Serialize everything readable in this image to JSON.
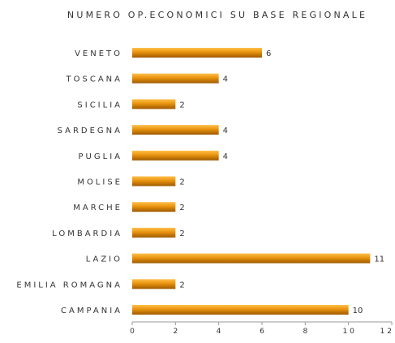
{
  "chart_data": {
    "type": "bar",
    "orientation": "horizontal",
    "title": "NUMERO OP.ECONOMICI SU BASE REGIONALE",
    "categories": [
      "VENETO",
      "TOSCANA",
      "SICILIA",
      "SARDEGNA",
      "PUGLIA",
      "MOLISE",
      "MARCHE",
      "LOMBARDIA",
      "LAZIO",
      "EMILIA ROMAGNA",
      "CAMPANIA"
    ],
    "values": [
      6,
      4,
      2,
      4,
      4,
      2,
      2,
      2,
      11,
      2,
      10
    ],
    "xlim": [
      0,
      12
    ],
    "xticks": [
      0,
      2,
      4,
      6,
      8,
      10,
      12
    ],
    "xtick_labels": [
      "0",
      "2",
      "4",
      "6",
      "8",
      "1 0",
      "1 2"
    ],
    "xlabel": "",
    "ylabel": "",
    "grid": false,
    "legend": "none",
    "colors": {
      "bar_top": "#ffc04a",
      "bar_mid": "#e8930e",
      "bar_bottom": "#9e5a00",
      "axis": "#9a9a9a",
      "text": "#333333"
    }
  }
}
